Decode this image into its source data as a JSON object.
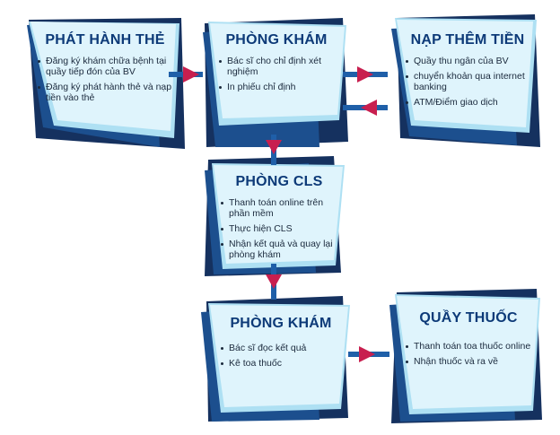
{
  "colors": {
    "navy": "#15315f",
    "dark_blue": "#1c4f8e",
    "card_light": "#dff4fc",
    "card_mid": "#aee0f3",
    "title_blue": "#0d3a78",
    "connector_blue": "#1f5fa8",
    "arrow_red": "#c81f4f"
  },
  "nodes": {
    "phat_hanh_the": {
      "title": "PHÁT HÀNH THẺ",
      "items": [
        "Đăng ký khám chữa bệnh tại quầy tiếp đón của BV",
        "Đăng ký phát hành thẻ và nạp tiền vào thẻ"
      ]
    },
    "phong_kham_1": {
      "title": "PHÒNG KHÁM",
      "items": [
        "Bác sĩ cho chỉ định xét nghiệm",
        "In phiếu chỉ định"
      ]
    },
    "nap_them_tien": {
      "title": "NẠP THÊM TIỀN",
      "items": [
        "Quầy thu ngân của BV",
        "chuyển khoản qua internet banking",
        "ATM/Điểm giao dịch"
      ]
    },
    "phong_cls": {
      "title": "PHÒNG CLS",
      "items": [
        "Thanh toán online trên phần mềm",
        "Thực hiện CLS",
        "Nhận kết quả và quay lại phòng khám"
      ]
    },
    "phong_kham_2": {
      "title": "PHÒNG KHÁM",
      "items": [
        "Bác sĩ đọc kết quả",
        "Kê toa thuốc"
      ]
    },
    "quay_thuoc": {
      "title": "QUẦY THUỐC",
      "items": [
        "Thanh toán toa thuốc online",
        "Nhận thuốc và ra về"
      ]
    }
  }
}
